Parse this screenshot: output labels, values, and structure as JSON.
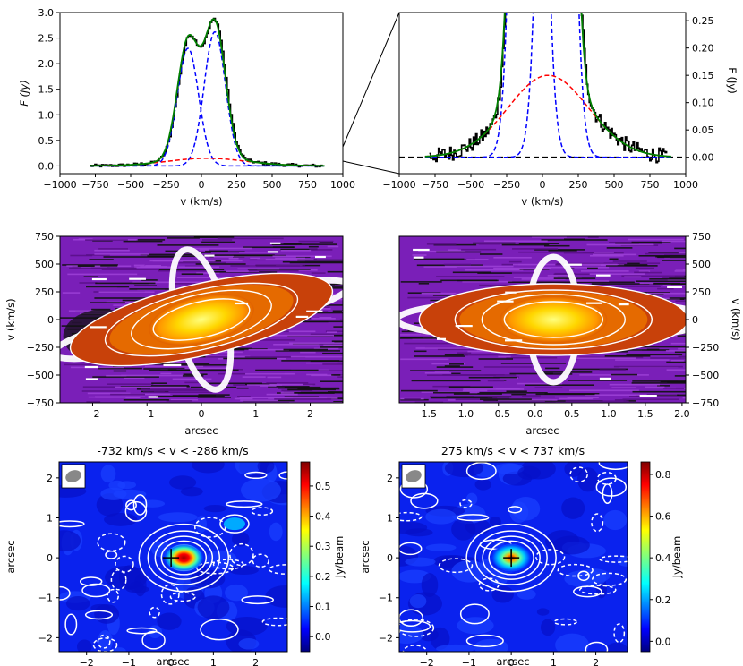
{
  "chart_data": [
    {
      "id": "spectrum_full",
      "type": "line",
      "xlabel": "v (km/s)",
      "ylabel": "F (Jy)",
      "xlim": [
        -1000,
        1000
      ],
      "ylim": [
        -0.15,
        3.0
      ],
      "xticks": [
        -1000,
        -750,
        -500,
        -250,
        0,
        250,
        500,
        750,
        1000
      ],
      "yticks": [
        0.0,
        0.5,
        1.0,
        1.5,
        2.0,
        2.5,
        3.0
      ],
      "xtick_labels": [
        "−1000",
        "−750",
        "−500",
        "−250",
        "0",
        "250",
        "500",
        "750",
        "1000"
      ],
      "ytick_labels": [
        "0.0",
        "0.5",
        "1.0",
        "1.5",
        "2.0",
        "2.5",
        "3.0"
      ],
      "components": [
        {
          "kind": "gaussian",
          "center": -95,
          "sigma": 75,
          "amplitude": 2.3,
          "color": "#0000ff",
          "dash": true
        },
        {
          "kind": "gaussian",
          "center": 95,
          "sigma": 75,
          "amplitude": 2.62,
          "color": "#0000ff",
          "dash": true
        },
        {
          "kind": "gaussian",
          "center": 40,
          "sigma": 280,
          "amplitude": 0.15,
          "color": "#ff0000",
          "dash": true
        },
        {
          "kind": "sum",
          "color": "#008000",
          "dash": false
        }
      ],
      "data_range": [
        -790,
        870
      ],
      "data_color": "#000000",
      "grid": false
    },
    {
      "id": "spectrum_zoom",
      "type": "line",
      "xlabel": "v (km/s)",
      "ylabel": "F (Jy)",
      "xlim": [
        -1000,
        1000
      ],
      "ylim": [
        -0.03,
        0.265
      ],
      "xticks": [
        -1000,
        -750,
        -500,
        -250,
        0,
        250,
        500,
        750,
        1000
      ],
      "yticks": [
        0.0,
        0.05,
        0.1,
        0.15,
        0.2,
        0.25
      ],
      "xtick_labels": [
        "−1000",
        "−750",
        "−500",
        "−250",
        "0",
        "250",
        "500",
        "750",
        "1000"
      ],
      "ytick_labels": [
        "0.00",
        "0.05",
        "0.10",
        "0.15",
        "0.20",
        "0.25"
      ],
      "baseline": 0.0,
      "grid": false
    },
    {
      "id": "pv_left",
      "type": "heatmap",
      "xlabel": "arcsec",
      "ylabel": "v (km/s)",
      "xlim": [
        -2.6,
        2.6
      ],
      "ylim": [
        -750,
        750
      ],
      "xticks": [
        -2,
        -1,
        0,
        1,
        2
      ],
      "yticks": [
        -750,
        -500,
        -250,
        0,
        250,
        500,
        750
      ],
      "xtick_labels": [
        "−2",
        "−1",
        "0",
        "1",
        "2"
      ],
      "ytick_labels": [
        "−750",
        "−500",
        "−250",
        "0",
        "250",
        "500",
        "750"
      ],
      "slope_kms_per_arcsec": -115
    },
    {
      "id": "pv_right",
      "type": "heatmap",
      "xlabel": "arcsec",
      "ylabel": "v (km/s)",
      "xlim": [
        -1.85,
        2.05
      ],
      "ylim": [
        -750,
        750
      ],
      "xticks": [
        -1.5,
        -1.0,
        -0.5,
        0.0,
        0.5,
        1.0,
        1.5,
        2.0
      ],
      "yticks": [
        -750,
        -500,
        -250,
        0,
        250,
        500,
        750
      ],
      "xtick_labels": [
        "−1.5",
        "−1.0",
        "−0.5",
        "0.0",
        "0.5",
        "1.0",
        "1.5",
        "2.0"
      ],
      "ytick_labels": [
        "−750",
        "−500",
        "−250",
        "0",
        "250",
        "500",
        "750"
      ],
      "center_arcsec": 0.25
    },
    {
      "id": "map_blue",
      "type": "heatmap",
      "title": "-732 km/s < v < -286 km/s",
      "xlabel": "arcsec",
      "ylabel": "arcsec",
      "xlim": [
        -2.65,
        2.75
      ],
      "ylim": [
        -2.35,
        2.4
      ],
      "xticks": [
        -2,
        -1,
        0,
        1,
        2
      ],
      "yticks": [
        -2,
        -1,
        0,
        1,
        2
      ],
      "xtick_labels": [
        "−2",
        "−1",
        "0",
        "1",
        "2"
      ],
      "ytick_labels": [
        "−2",
        "−1",
        "0",
        "1",
        "2"
      ],
      "colorbar_label": "Jy/beam",
      "colorbar_range": [
        -0.05,
        0.58
      ],
      "colorbar_ticks": [
        0.0,
        0.1,
        0.2,
        0.3,
        0.4,
        0.5
      ],
      "colorbar_tick_labels": [
        "0.0",
        "0.1",
        "0.2",
        "0.3",
        "0.4",
        "0.5"
      ],
      "peak_position": [
        0.3,
        0.0
      ]
    },
    {
      "id": "map_red",
      "type": "heatmap",
      "title": "275 km/s < v < 737 km/s",
      "xlabel": "arcsec",
      "ylabel": "arcsec",
      "xlim": [
        -2.65,
        2.75
      ],
      "ylim": [
        -2.35,
        2.4
      ],
      "xticks": [
        -2,
        -1,
        0,
        1,
        2
      ],
      "yticks": [
        -2,
        -1,
        0,
        1,
        2
      ],
      "xtick_labels": [
        "−2",
        "−1",
        "0",
        "1",
        "2"
      ],
      "ytick_labels": [
        "−2",
        "−1",
        "0",
        "1",
        "2"
      ],
      "colorbar_label": "Jy/beam",
      "colorbar_range": [
        -0.05,
        0.86
      ],
      "colorbar_ticks": [
        0.0,
        0.2,
        0.4,
        0.6,
        0.8
      ],
      "colorbar_tick_labels": [
        "0.0",
        "0.2",
        "0.4",
        "0.6",
        "0.8"
      ],
      "peak_position": [
        0.0,
        0.0
      ]
    }
  ]
}
